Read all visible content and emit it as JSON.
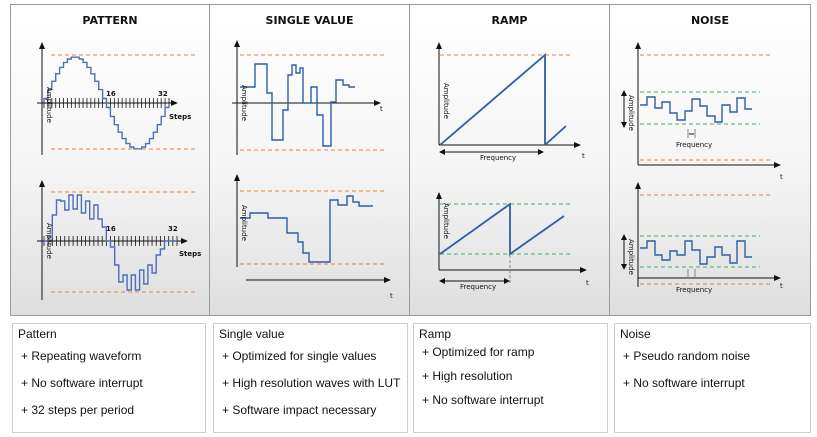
{
  "panels": [
    {
      "title": "PATTERN",
      "axis_amp": "Amplitude",
      "label_16": "16",
      "label_32": "32",
      "label_steps": "Steps"
    },
    {
      "title": "SINGLE VALUE",
      "axis_amp": "Amplitude",
      "label_t": "t"
    },
    {
      "title": "RAMP",
      "axis_amp": "Amplitude",
      "label_t": "t",
      "label_freq": "Frequency"
    },
    {
      "title": "NOISE",
      "axis_amp": "Amplitude",
      "label_t": "t",
      "label_freq": "Frequency"
    }
  ],
  "colors": {
    "wave": "#2e5fa3",
    "stair": "#4f6fb8",
    "guide": "#e8823a",
    "ramp_guide": "#3fae5c",
    "axis": "#111111"
  },
  "descriptions": [
    {
      "title": "Pattern",
      "items": [
        "+ Repeating waveform",
        "+ No software interrupt",
        "+ 32 steps per period"
      ]
    },
    {
      "title": "Single value",
      "items": [
        "+ Optimized for single values",
        "+ High resolution waves with LUT",
        "+ Software impact necessary"
      ]
    },
    {
      "title": "Ramp",
      "items": [
        "+ Optimized for ramp",
        "+ High resolution",
        "+ No software interrupt"
      ]
    },
    {
      "title": "Noise",
      "items": [
        "+ Pseudo random noise",
        "+ No software interrupt"
      ]
    }
  ]
}
